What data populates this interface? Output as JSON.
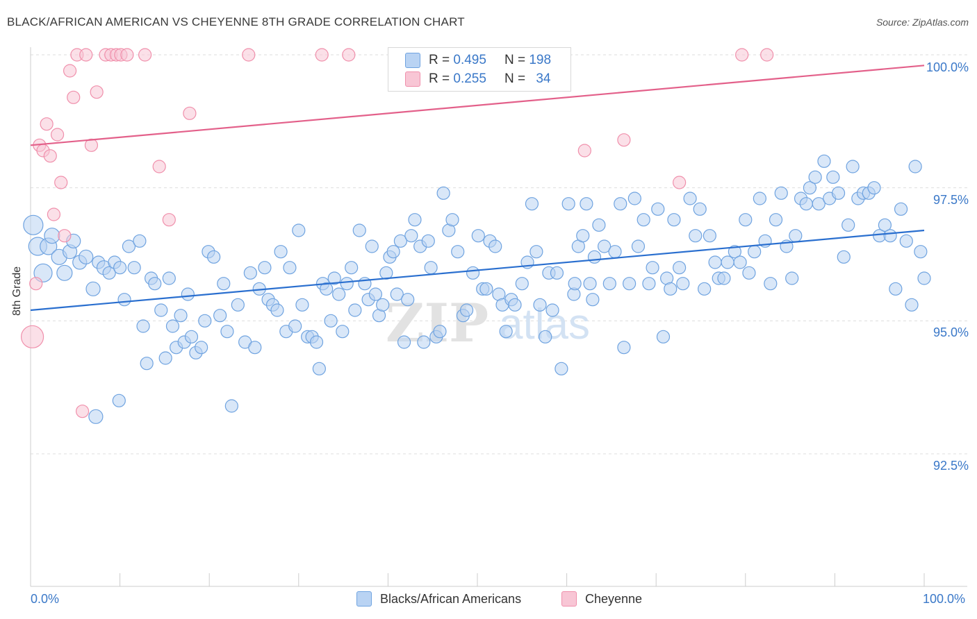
{
  "title": "BLACK/AFRICAN AMERICAN VS CHEYENNE 8TH GRADE CORRELATION CHART",
  "source": "Source: ZipAtlas.com",
  "watermark": "ZIPatlas",
  "chart_data": {
    "type": "scatter",
    "ylabel": "8th Grade",
    "xlabel": "",
    "xlim": [
      0,
      100
    ],
    "ylim": [
      89.8,
      100.7
    ],
    "x_tick_labels": [
      "0.0%",
      "100.0%"
    ],
    "y_ticks": [
      92.5,
      95.0,
      97.5,
      100.0
    ],
    "y_tick_labels": [
      "92.5%",
      "95.0%",
      "97.5%",
      "100.0%"
    ],
    "grid": true,
    "legend_position": "top-center",
    "series": [
      {
        "name": "Blacks/African Americans",
        "color": "#6fa3e0",
        "fill": "#b9d3f3",
        "line_color": "#2a6fcf",
        "r": "0.495",
        "n": "198",
        "trend": [
          [
            0,
            95.2
          ],
          [
            100,
            96.7
          ]
        ],
        "points": [
          [
            0.3,
            96.8,
            14
          ],
          [
            0.8,
            96.4,
            13
          ],
          [
            1.4,
            95.9,
            13
          ],
          [
            2.0,
            96.4,
            12
          ],
          [
            2.4,
            96.6,
            11
          ],
          [
            3.2,
            96.2,
            11
          ],
          [
            3.8,
            95.9,
            11
          ],
          [
            4.4,
            96.3,
            10
          ],
          [
            4.8,
            96.5,
            10
          ],
          [
            5.5,
            96.1,
            10
          ],
          [
            6.2,
            96.2,
            10
          ],
          [
            7.0,
            95.6,
            10
          ],
          [
            7.6,
            96.1,
            9
          ],
          [
            8.2,
            96.0,
            10
          ],
          [
            8.8,
            95.9,
            9
          ],
          [
            9.4,
            96.1,
            9
          ],
          [
            10.0,
            96.0,
            9
          ],
          [
            10.5,
            95.4,
            9
          ],
          [
            11.0,
            96.4,
            9
          ],
          [
            11.6,
            96.0,
            9
          ],
          [
            12.2,
            96.5,
            9
          ],
          [
            12.6,
            94.9,
            9
          ],
          [
            13.0,
            94.2,
            9
          ],
          [
            13.5,
            95.8,
            9
          ],
          [
            13.9,
            95.7,
            9
          ],
          [
            14.6,
            95.2,
            9
          ],
          [
            15.1,
            94.3,
            9
          ],
          [
            15.5,
            95.8,
            9
          ],
          [
            15.9,
            94.9,
            9
          ],
          [
            16.3,
            94.5,
            9
          ],
          [
            16.8,
            95.1,
            9
          ],
          [
            17.2,
            94.6,
            9
          ],
          [
            17.6,
            95.5,
            9
          ],
          [
            18.0,
            94.7,
            9
          ],
          [
            18.5,
            94.4,
            9
          ],
          [
            19.1,
            94.5,
            9
          ],
          [
            19.5,
            95.0,
            9
          ],
          [
            19.9,
            96.3,
            9
          ],
          [
            20.5,
            96.2,
            9
          ],
          [
            21.2,
            95.1,
            9
          ],
          [
            21.6,
            95.7,
            9
          ],
          [
            22.0,
            94.8,
            9
          ],
          [
            22.5,
            93.4,
            9
          ],
          [
            23.2,
            95.3,
            9
          ],
          [
            24.0,
            94.6,
            9
          ],
          [
            24.6,
            95.9,
            9
          ],
          [
            25.1,
            94.5,
            9
          ],
          [
            25.6,
            95.6,
            9
          ],
          [
            26.2,
            96.0,
            9
          ],
          [
            26.6,
            95.4,
            9
          ],
          [
            27.1,
            95.3,
            9
          ],
          [
            27.6,
            95.2,
            9
          ],
          [
            28.0,
            96.3,
            9
          ],
          [
            28.6,
            94.8,
            9
          ],
          [
            29.0,
            96.0,
            9
          ],
          [
            29.6,
            94.9,
            9
          ],
          [
            30.0,
            96.7,
            9
          ],
          [
            30.4,
            95.3,
            9
          ],
          [
            31.0,
            94.7,
            9
          ],
          [
            31.5,
            94.7,
            9
          ],
          [
            32.0,
            94.6,
            9
          ],
          [
            32.3,
            94.1,
            9
          ],
          [
            32.7,
            95.7,
            9
          ],
          [
            33.1,
            95.6,
            9
          ],
          [
            33.6,
            95.0,
            9
          ],
          [
            34.0,
            95.8,
            9
          ],
          [
            34.5,
            95.5,
            9
          ],
          [
            34.9,
            94.8,
            9
          ],
          [
            35.4,
            95.7,
            9
          ],
          [
            35.9,
            96.0,
            9
          ],
          [
            36.3,
            95.2,
            9
          ],
          [
            36.8,
            96.7,
            9
          ],
          [
            37.4,
            95.7,
            9
          ],
          [
            37.8,
            95.4,
            9
          ],
          [
            38.2,
            96.4,
            9
          ],
          [
            38.6,
            95.5,
            9
          ],
          [
            39.0,
            95.1,
            9
          ],
          [
            39.4,
            95.3,
            9
          ],
          [
            39.8,
            95.9,
            9
          ],
          [
            40.2,
            96.2,
            9
          ],
          [
            40.6,
            96.3,
            9
          ],
          [
            41.0,
            95.5,
            9
          ],
          [
            41.4,
            96.5,
            9
          ],
          [
            41.8,
            94.6,
            9
          ],
          [
            42.2,
            95.4,
            9
          ],
          [
            42.6,
            96.6,
            9
          ],
          [
            43.0,
            96.9,
            9
          ],
          [
            43.6,
            96.4,
            9
          ],
          [
            44.0,
            94.6,
            9
          ],
          [
            44.5,
            96.5,
            9
          ],
          [
            44.8,
            96.0,
            9
          ],
          [
            45.4,
            94.7,
            9
          ],
          [
            45.8,
            94.8,
            9
          ],
          [
            46.2,
            97.4,
            9
          ],
          [
            46.8,
            96.7,
            9
          ],
          [
            47.2,
            96.9,
            9
          ],
          [
            47.8,
            96.3,
            9
          ],
          [
            48.4,
            95.1,
            9
          ],
          [
            48.8,
            95.2,
            9
          ],
          [
            49.5,
            95.9,
            9
          ],
          [
            50.1,
            96.6,
            9
          ],
          [
            50.6,
            95.6,
            9
          ],
          [
            51.0,
            95.6,
            9
          ],
          [
            51.4,
            96.5,
            9
          ],
          [
            52.0,
            96.4,
            9
          ],
          [
            52.4,
            95.5,
            9
          ],
          [
            52.8,
            95.3,
            9
          ],
          [
            53.2,
            94.8,
            9
          ],
          [
            53.8,
            95.4,
            9
          ],
          [
            54.2,
            95.3,
            9
          ],
          [
            55.0,
            95.7,
            9
          ],
          [
            55.6,
            96.1,
            9
          ],
          [
            56.1,
            97.2,
            9
          ],
          [
            56.6,
            96.3,
            9
          ],
          [
            57.0,
            95.3,
            9
          ],
          [
            57.6,
            94.7,
            9
          ],
          [
            58.0,
            95.9,
            9
          ],
          [
            58.4,
            95.2,
            9
          ],
          [
            58.9,
            95.9,
            9
          ],
          [
            59.4,
            94.1,
            9
          ],
          [
            60.2,
            97.2,
            9
          ],
          [
            60.8,
            95.5,
            9
          ],
          [
            61.3,
            96.4,
            9
          ],
          [
            61.8,
            96.6,
            9
          ],
          [
            62.2,
            97.2,
            9
          ],
          [
            62.6,
            95.7,
            9
          ],
          [
            63.1,
            96.2,
            9
          ],
          [
            63.6,
            96.8,
            9
          ],
          [
            64.2,
            96.4,
            9
          ],
          [
            64.8,
            95.7,
            9
          ],
          [
            65.4,
            96.3,
            9
          ],
          [
            66.0,
            97.2,
            9
          ],
          [
            66.4,
            94.5,
            9
          ],
          [
            67.0,
            95.7,
            9
          ],
          [
            67.6,
            97.3,
            9
          ],
          [
            68.0,
            96.4,
            9
          ],
          [
            68.6,
            96.9,
            9
          ],
          [
            69.2,
            95.7,
            9
          ],
          [
            69.6,
            96.0,
            9
          ],
          [
            70.2,
            97.1,
            9
          ],
          [
            70.8,
            94.7,
            9
          ],
          [
            71.2,
            95.8,
            9
          ],
          [
            71.6,
            95.6,
            9
          ],
          [
            72.0,
            96.9,
            9
          ],
          [
            72.6,
            96.0,
            9
          ],
          [
            73.0,
            95.7,
            9
          ],
          [
            73.8,
            97.3,
            9
          ],
          [
            74.4,
            96.6,
            9
          ],
          [
            74.9,
            97.1,
            9
          ],
          [
            75.4,
            95.6,
            9
          ],
          [
            76.0,
            96.6,
            9
          ],
          [
            76.6,
            96.1,
            9
          ],
          [
            77.0,
            95.8,
            9
          ],
          [
            77.6,
            95.8,
            9
          ],
          [
            78.0,
            96.1,
            9
          ],
          [
            78.8,
            96.3,
            9
          ],
          [
            79.4,
            96.1,
            9
          ],
          [
            80.0,
            96.9,
            9
          ],
          [
            80.4,
            95.9,
            9
          ],
          [
            81.0,
            96.3,
            9
          ],
          [
            81.6,
            97.3,
            9
          ],
          [
            82.2,
            96.5,
            9
          ],
          [
            82.8,
            95.7,
            9
          ],
          [
            83.4,
            96.9,
            9
          ],
          [
            84.0,
            97.4,
            9
          ],
          [
            84.6,
            96.4,
            9
          ],
          [
            85.2,
            95.8,
            9
          ],
          [
            85.6,
            96.6,
            9
          ],
          [
            86.2,
            97.3,
            9
          ],
          [
            86.8,
            97.2,
            9
          ],
          [
            87.2,
            97.5,
            9
          ],
          [
            87.8,
            97.7,
            9
          ],
          [
            88.2,
            97.2,
            9
          ],
          [
            88.8,
            98.0,
            9
          ],
          [
            89.4,
            97.3,
            9
          ],
          [
            89.8,
            97.7,
            9
          ],
          [
            90.4,
            97.4,
            9
          ],
          [
            91.0,
            96.2,
            9
          ],
          [
            91.5,
            96.8,
            9
          ],
          [
            92.0,
            97.9,
            9
          ],
          [
            92.6,
            97.3,
            9
          ],
          [
            93.2,
            97.4,
            9
          ],
          [
            93.8,
            97.4,
            9
          ],
          [
            94.4,
            97.5,
            9
          ],
          [
            95.0,
            96.6,
            9
          ],
          [
            95.6,
            96.8,
            9
          ],
          [
            96.2,
            96.6,
            9
          ],
          [
            96.8,
            95.6,
            9
          ],
          [
            97.4,
            97.1,
            9
          ],
          [
            98.0,
            96.5,
            9
          ],
          [
            98.6,
            95.3,
            9
          ],
          [
            99.0,
            97.9,
            9
          ],
          [
            99.6,
            96.3,
            9
          ],
          [
            100.0,
            95.8,
            9
          ],
          [
            60.9,
            95.7,
            9
          ],
          [
            62.9,
            95.4,
            9
          ],
          [
            7.3,
            93.2,
            10
          ],
          [
            9.9,
            93.5,
            9
          ]
        ]
      },
      {
        "name": "Cheyenne",
        "color": "#f08fab",
        "fill": "#f8c6d5",
        "line_color": "#e3608a",
        "r": "0.255",
        "n": "34",
        "trend": [
          [
            0,
            98.3
          ],
          [
            100,
            99.8
          ]
        ],
        "points": [
          [
            0.2,
            94.7,
            16
          ],
          [
            0.6,
            95.7,
            9
          ],
          [
            1.0,
            98.3,
            9
          ],
          [
            1.4,
            98.2,
            9
          ],
          [
            1.8,
            98.7,
            9
          ],
          [
            2.2,
            98.1,
            9
          ],
          [
            2.6,
            97.0,
            9
          ],
          [
            3.0,
            98.5,
            9
          ],
          [
            3.4,
            97.6,
            9
          ],
          [
            3.8,
            96.6,
            9
          ],
          [
            4.4,
            99.7,
            9
          ],
          [
            4.8,
            99.2,
            9
          ],
          [
            5.2,
            100.0,
            9
          ],
          [
            5.8,
            93.3,
            9
          ],
          [
            6.2,
            100.0,
            9
          ],
          [
            6.8,
            98.3,
            9
          ],
          [
            7.4,
            99.3,
            9
          ],
          [
            8.4,
            100.0,
            9
          ],
          [
            9.0,
            100.0,
            9
          ],
          [
            9.6,
            100.0,
            9
          ],
          [
            10.1,
            100.0,
            9
          ],
          [
            10.8,
            100.0,
            9
          ],
          [
            12.8,
            100.0,
            9
          ],
          [
            14.4,
            97.9,
            9
          ],
          [
            15.5,
            96.9,
            9
          ],
          [
            17.8,
            98.9,
            9
          ],
          [
            24.4,
            100.0,
            9
          ],
          [
            32.6,
            100.0,
            9
          ],
          [
            35.6,
            100.0,
            9
          ],
          [
            62.0,
            98.2,
            9
          ],
          [
            66.4,
            98.4,
            9
          ],
          [
            72.6,
            97.6,
            9
          ],
          [
            79.6,
            100.0,
            9
          ],
          [
            82.4,
            100.0,
            9
          ]
        ]
      }
    ]
  },
  "legend": {
    "r_label": "R =",
    "n_label": "N ="
  }
}
